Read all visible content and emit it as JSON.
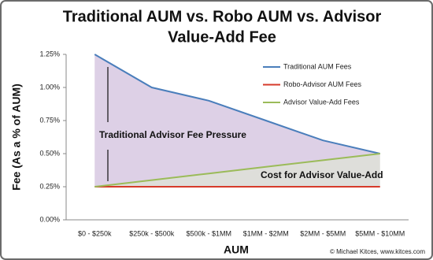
{
  "chart_data": {
    "type": "line",
    "title": [
      "Traditional AUM vs. Robo AUM vs. Advisor",
      "Value-Add Fee"
    ],
    "xlabel": "AUM",
    "ylabel": "Fee (As a % of AUM)",
    "categories": [
      "$0 - $250k",
      "$250k - $500k",
      "$500k - $1MM",
      "$1MM - $2MM",
      "$2MM - $5MM",
      "$5MM - $10MM"
    ],
    "series": [
      {
        "name": "Traditional AUM Fees",
        "color": "#4a7ebb",
        "values": [
          1.25,
          1.0,
          0.9,
          0.75,
          0.6,
          0.5
        ]
      },
      {
        "name": "Robo-Advisor AUM Fees",
        "color": "#d63a2a",
        "values": [
          0.25,
          0.25,
          0.25,
          0.25,
          0.25,
          0.25
        ]
      },
      {
        "name": "Advisor Value-Add Fees",
        "color": "#9bbb59",
        "values": [
          0.25,
          0.3,
          0.35,
          0.4,
          0.45,
          0.5
        ]
      }
    ],
    "ylim": [
      0,
      1.25
    ],
    "yticks": [
      {
        "value": 0,
        "label": "0.00%"
      },
      {
        "value": 0.25,
        "label": "0.25%"
      },
      {
        "value": 0.5,
        "label": "0.50%"
      },
      {
        "value": 0.75,
        "label": "0.75%"
      },
      {
        "value": 1.0,
        "label": "1.00%"
      },
      {
        "value": 1.25,
        "label": "1.25%"
      }
    ],
    "grid": false,
    "legend": "upper right",
    "annotations": [
      "Traditional Advisor Fee Pressure",
      "Cost for Advisor Value-Add"
    ],
    "credit": "© Michael Kitces, www.kitces.com"
  }
}
